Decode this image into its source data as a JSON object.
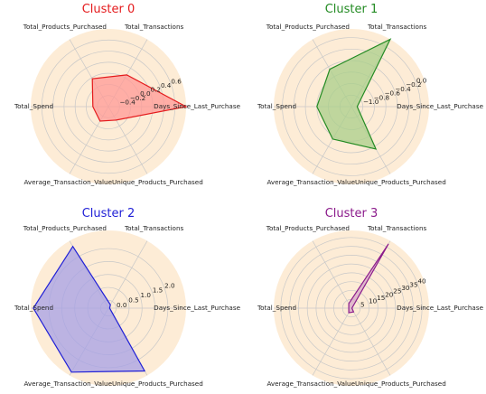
{
  "chart_data": {
    "type": "radar",
    "background_color": "#fdecd6",
    "grid_color": "#c8c8c8",
    "axes": [
      "Days_Since_Last_Purchase",
      "Total_Transactions",
      "Total_Products_Purchased",
      "Total_Spend",
      "Average_Transaction_Value",
      "Unique_Products_Purchased"
    ],
    "charts": [
      {
        "title": "Cluster 0",
        "color": "#e41a1c",
        "fill": "#ff9a96",
        "rlim": [
          -0.6,
          0.8
        ],
        "ticks": [
          "−0.4",
          "−0.2",
          "0.0",
          "0.2",
          "0.4",
          "0.6"
        ],
        "tick_values": [
          -0.4,
          -0.2,
          0.0,
          0.2,
          0.4,
          0.6
        ],
        "values": [
          0.8,
          0.06,
          -0.02,
          -0.32,
          -0.3,
          -0.32
        ]
      },
      {
        "title": "Cluster 1",
        "color": "#238b23",
        "fill": "#a9cf8a",
        "rlim": [
          -1.2,
          0.15
        ],
        "ticks": [
          "−1.0",
          "−0.8",
          "−0.6",
          "−0.4",
          "−0.2",
          "0.0"
        ],
        "tick_values": [
          -1.0,
          -0.8,
          -0.6,
          -0.4,
          -0.2,
          0.0
        ],
        "values": [
          -1.1,
          0.15,
          -0.45,
          -0.6,
          -0.55,
          -0.35
        ]
      },
      {
        "title": "Cluster 2",
        "color": "#1f1fd6",
        "fill": "#a6a0e6",
        "rlim": [
          -0.3,
          2.7
        ],
        "ticks": [
          "0.0",
          "0.5",
          "1.0",
          "1.5",
          "2.0"
        ],
        "tick_values": [
          0.0,
          0.5,
          1.0,
          1.5,
          2.0
        ],
        "values": [
          -0.25,
          -0.15,
          2.45,
          2.6,
          2.55,
          2.5
        ]
      },
      {
        "title": "Cluster 3",
        "color": "#8b1a8b",
        "fill": "#d7a8c8",
        "rlim": [
          0,
          44
        ],
        "ticks": [
          "5",
          "10",
          "15",
          "20",
          "25",
          "30",
          "35",
          "40"
        ],
        "tick_values": [
          5,
          10,
          15,
          20,
          25,
          30,
          35,
          40
        ],
        "values": [
          0.3,
          42,
          3,
          1.5,
          3,
          2.5
        ]
      }
    ]
  }
}
